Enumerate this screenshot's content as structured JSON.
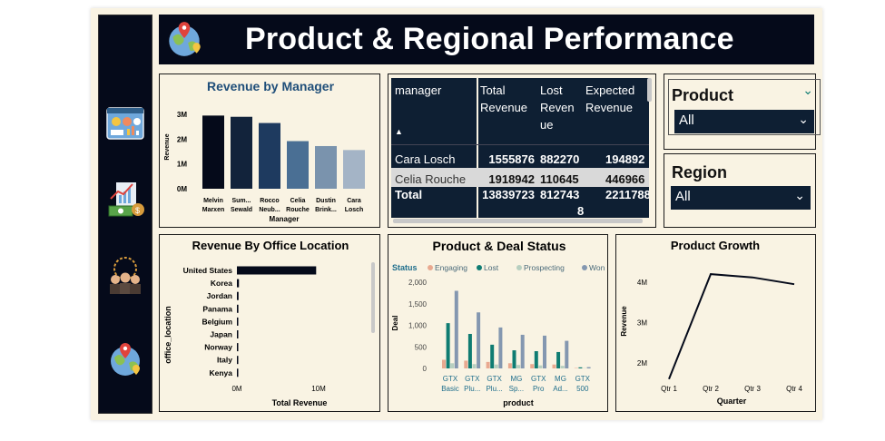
{
  "header": {
    "title": "Product & Regional Performance"
  },
  "sidebar": {
    "items": [
      {
        "icon": "dashboard-icon"
      },
      {
        "icon": "money-growth-icon"
      },
      {
        "icon": "team-icon"
      },
      {
        "icon": "globe-location-icon"
      }
    ]
  },
  "colors": {
    "navy": "#050a1a",
    "panel_bg": "#f9f3e3",
    "table_bg": "#0e1f33",
    "won": "#8497b0",
    "lost": "#0f7c72",
    "engaging": "#e9a990",
    "prospecting": "#b7cfc0"
  },
  "revenue_by_manager": {
    "title": "Revenue by Manager",
    "ylabel": "Revenue",
    "xlabel": "Manager",
    "yticks": [
      "3M",
      "2M",
      "1M",
      "0M"
    ],
    "managers": [
      {
        "l1": "Melvin",
        "l2": "Marxen",
        "value": 2.95
      },
      {
        "l1": "Sum...",
        "l2": "Sewald",
        "value": 2.9
      },
      {
        "l1": "Rocco",
        "l2": "Neub...",
        "value": 2.65
      },
      {
        "l1": "Celia",
        "l2": "Rouche",
        "value": 1.92
      },
      {
        "l1": "Dustin",
        "l2": "Brink...",
        "value": 1.72
      },
      {
        "l1": "Cara",
        "l2": "Losch",
        "value": 1.56
      }
    ]
  },
  "table": {
    "headers": [
      "manager",
      "Total Revenue",
      "Lost Reven ue",
      "Expected Revenue"
    ],
    "headers_lines": [
      [
        "manager"
      ],
      [
        "Total",
        "Revenue"
      ],
      [
        "Lost",
        "Reven",
        "ue"
      ],
      [
        "Expected",
        "Revenue"
      ]
    ],
    "rows": [
      {
        "manager": "Cara Losch",
        "total": "1555876",
        "lost": "882270",
        "expected": "194892"
      },
      {
        "manager": "Celia Rouche",
        "total": "1918942",
        "lost": "110645",
        "expected": "446966"
      }
    ],
    "total": {
      "label": "Total",
      "total": "13839723",
      "lost_l1": "812743",
      "lost_l2": "8",
      "expected": "2211788"
    }
  },
  "slicers": {
    "product": {
      "title": "Product",
      "value": "All"
    },
    "region": {
      "title": "Region",
      "value": "All"
    }
  },
  "office_location": {
    "title": "Revenue By Office Location",
    "ylabel": "office_location",
    "xlabel": "Total Revenue",
    "xticks": [
      "0M",
      "10M"
    ],
    "locations": [
      {
        "name": "United States",
        "value": 9.7
      },
      {
        "name": "Korea",
        "value": 0.25
      },
      {
        "name": "Jordan",
        "value": 0.2
      },
      {
        "name": "Panama",
        "value": 0.18
      },
      {
        "name": "Belgium",
        "value": 0.16
      },
      {
        "name": "Japan",
        "value": 0.14
      },
      {
        "name": "Norway",
        "value": 0.12
      },
      {
        "name": "Italy",
        "value": 0.1
      },
      {
        "name": "Kenya",
        "value": 0.09
      }
    ]
  },
  "deal_status": {
    "title": "Product & Deal Status",
    "legend_title": "Status",
    "ylabel": "Deal",
    "xlabel": "product",
    "yticks": [
      "2,000",
      "1,500",
      "1,000",
      "500",
      "0"
    ],
    "series": [
      {
        "name": "Engaging",
        "color": "#e9a990"
      },
      {
        "name": "Lost",
        "color": "#0f7c72"
      },
      {
        "name": "Prospecting",
        "color": "#b7cfc0"
      },
      {
        "name": "Won",
        "color": "#8497b0"
      }
    ],
    "products": [
      {
        "l1": "GTX",
        "l2": "Basic",
        "values": [
          200,
          1050,
          120,
          1800
        ]
      },
      {
        "l1": "GTX",
        "l2": "Plu...",
        "values": [
          180,
          800,
          100,
          1300
        ]
      },
      {
        "l1": "GTX",
        "l2": "Plu...",
        "values": [
          150,
          550,
          90,
          950
        ]
      },
      {
        "l1": "MG",
        "l2": "Sp...",
        "values": [
          120,
          420,
          80,
          780
        ]
      },
      {
        "l1": "GTX",
        "l2": "Pro",
        "values": [
          100,
          400,
          70,
          760
        ]
      },
      {
        "l1": "MG",
        "l2": "Ad...",
        "values": [
          90,
          380,
          60,
          640
        ]
      },
      {
        "l1": "GTX",
        "l2": "500",
        "values": [
          10,
          25,
          5,
          30
        ]
      }
    ]
  },
  "product_growth": {
    "title": "Product Growth",
    "ylabel": "Revenue",
    "xlabel": "Quarter",
    "yticks": [
      "4M",
      "3M",
      "2M"
    ],
    "quarters": [
      "Qtr 1",
      "Qtr 2",
      "Qtr 3",
      "Qtr 4"
    ],
    "values": [
      1.6,
      4.2,
      4.12,
      3.95
    ]
  }
}
